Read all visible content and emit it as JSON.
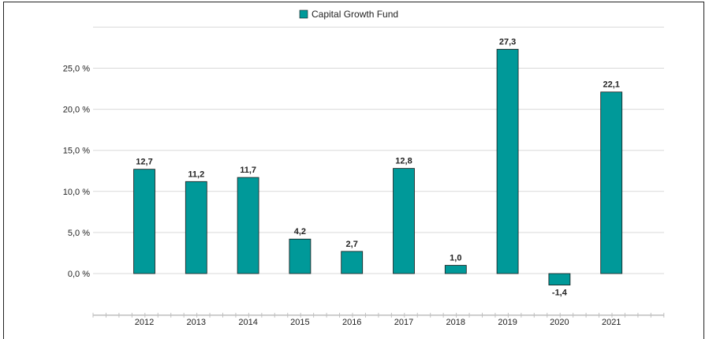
{
  "colors": {
    "bar": "#009999",
    "bar_stroke": "#1a1a1a",
    "grid": "#d9d9d9",
    "axis": "#bfbfbf"
  },
  "chart_data": {
    "type": "bar",
    "categories": [
      "2012",
      "2013",
      "2014",
      "2015",
      "2016",
      "2017",
      "2018",
      "2019",
      "2020",
      "2021"
    ],
    "series": [
      {
        "name": "Capital Growth Fund",
        "values": [
          12.7,
          11.2,
          11.7,
          4.2,
          2.7,
          12.8,
          1.0,
          27.3,
          -1.4,
          22.1
        ]
      }
    ],
    "data_labels": [
      "12,7",
      "11,2",
      "11,7",
      "4,2",
      "2,7",
      "12,8",
      "1,0",
      "27,3",
      "-1,4",
      "22,1"
    ],
    "y_ticks": [
      0,
      5,
      10,
      15,
      20,
      25
    ],
    "y_tick_labels": [
      "0,0 %",
      "5,0 %",
      "10,0 %",
      "15,0 %",
      "20,0 %",
      "25,0 %"
    ],
    "ylim": [
      -4.3,
      30
    ],
    "grid": true,
    "legend_position": "top-center",
    "title": "",
    "xlabel": "",
    "ylabel": ""
  }
}
